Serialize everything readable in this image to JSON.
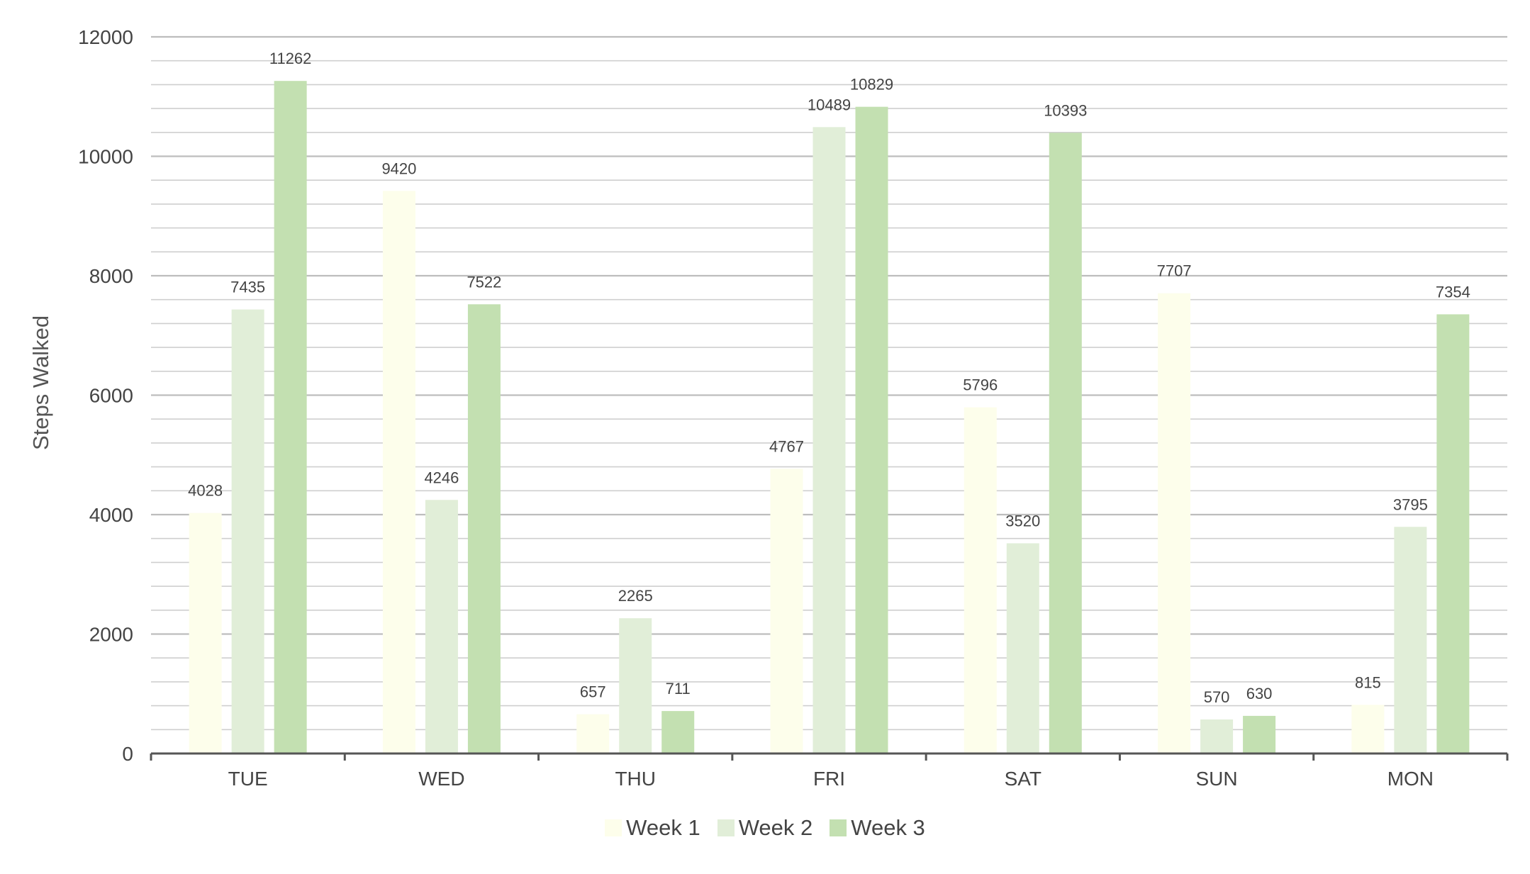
{
  "chart_data": {
    "type": "bar",
    "title": "",
    "xlabel": "",
    "ylabel": "Steps Walked",
    "ylim": [
      0,
      12000
    ],
    "y_ticks": [
      "0",
      "2000",
      "4000",
      "6000",
      "8000",
      "10000",
      "12000"
    ],
    "grid": "horizontal",
    "legend_position": "bottom",
    "categories": [
      "TUE",
      "WED",
      "THU",
      "FRI",
      "SAT",
      "SUN",
      "MON"
    ],
    "series": [
      {
        "name": "Week 1",
        "color": "#FDFEEB",
        "values": [
          4028,
          9420,
          657,
          4767,
          5796,
          7707,
          815
        ]
      },
      {
        "name": "Week 2",
        "color": "#E1EED8",
        "values": [
          7435,
          4246,
          2265,
          10489,
          3520,
          570,
          3795
        ]
      },
      {
        "name": "Week 3",
        "color": "#C3E0B1",
        "values": [
          11262,
          7522,
          711,
          10829,
          10393,
          630,
          7354
        ]
      }
    ]
  }
}
